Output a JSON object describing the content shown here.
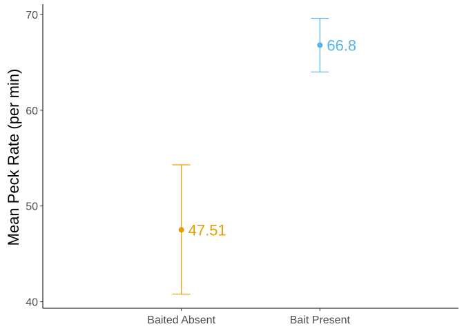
{
  "chart_data": {
    "type": "scatter",
    "title": "",
    "xlabel": "",
    "ylabel": "Mean Peck Rate (per min)",
    "categories": [
      "Baited Absent",
      "Bait Present"
    ],
    "points": [
      {
        "category": "Baited Absent",
        "mean": 47.51,
        "lower": 40.8,
        "upper": 54.3,
        "label": "47.51",
        "color": "#E69F00"
      },
      {
        "category": "Bait Present",
        "mean": 66.8,
        "lower": 64.0,
        "upper": 69.6,
        "label": "66.8",
        "color": "#56B4E9"
      }
    ],
    "yticks": [
      40,
      50,
      60,
      70
    ],
    "ylim": [
      39.32,
      71.08
    ],
    "grid": false,
    "legend": "none",
    "error_bars": true
  }
}
